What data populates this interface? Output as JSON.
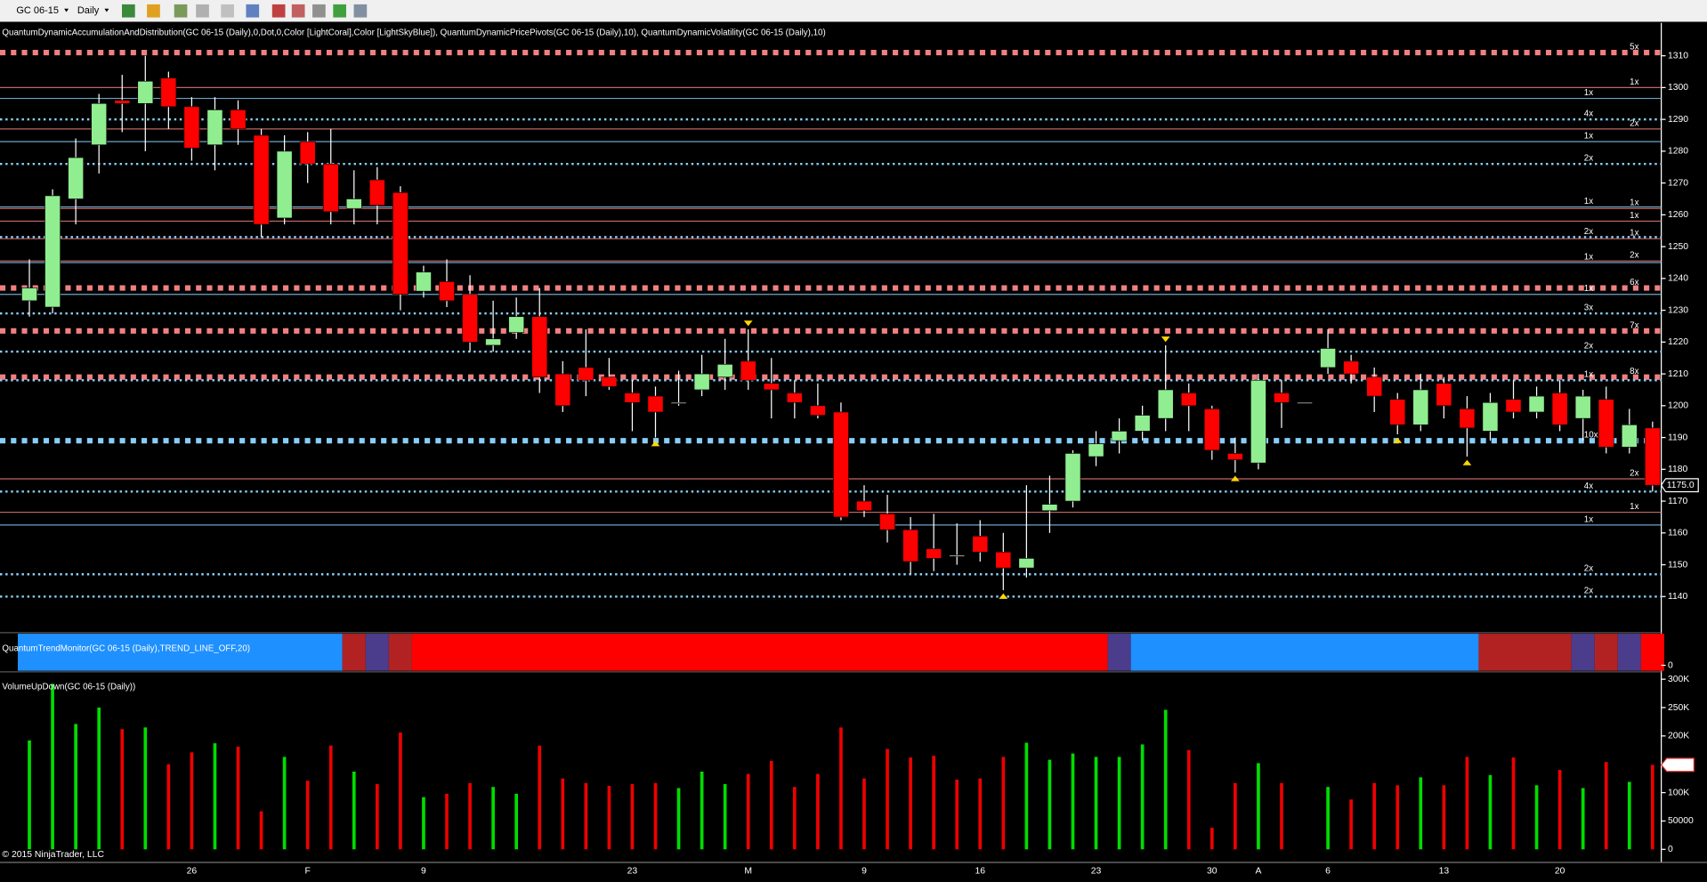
{
  "toolbar": {
    "instrument": "GC 06-15",
    "period": "Daily"
  },
  "copyright": "© 2015 NinjaTrader, LLC",
  "chart_data": [
    {
      "type": "candlestick",
      "title": "QuantumDynamicAccumulationAndDistribution(GC 06-15 (Daily),0,Dot,0,Color [LightCoral],Color [LightSkyBlue]), QuantumDynamicPricePivots(GC 06-15 (Daily),10), QuantumDynamicVolatility(GC 06-15 (Daily),10)",
      "categories": [
        null,
        null,
        null,
        null,
        null,
        null,
        null,
        "26",
        null,
        null,
        null,
        null,
        "F",
        null,
        null,
        null,
        null,
        "9",
        null,
        null,
        null,
        null,
        null,
        null,
        null,
        null,
        "23",
        null,
        null,
        null,
        null,
        "M",
        null,
        null,
        null,
        null,
        "9",
        null,
        null,
        null,
        null,
        "16",
        null,
        null,
        null,
        null,
        "23",
        null,
        null,
        null,
        null,
        "30",
        null,
        "A",
        null,
        null,
        "6",
        null,
        null,
        null,
        null,
        "13",
        null,
        null,
        null,
        null,
        "20",
        null,
        null,
        null,
        null
      ],
      "open": [
        1233,
        1231,
        1265,
        1282,
        1296,
        1295,
        1303,
        1294,
        1282,
        1293,
        1285,
        1259,
        1283,
        1276,
        1262,
        1271,
        1267,
        1236,
        1239,
        1235,
        1219,
        1223,
        1228,
        1210,
        1212,
        1209,
        1204,
        1203,
        1201,
        1205,
        1209,
        1214,
        1207,
        1204,
        1200,
        1198,
        1170,
        1166,
        1161,
        1155,
        1153,
        1159,
        1154,
        1149,
        1167,
        1170,
        1184,
        1189,
        1192,
        1196,
        1204,
        1199,
        1185,
        1182,
        1204,
        1201,
        1212,
        1214,
        1209,
        1202,
        1194,
        1207,
        1199,
        1192,
        1202,
        1198,
        1204,
        1196,
        1202,
        1187,
        1193
      ],
      "high": [
        1246,
        1268,
        1284,
        1298,
        1304,
        1310,
        1305,
        1297,
        1297,
        1296,
        1287,
        1285,
        1286,
        1287,
        1274,
        1275,
        1269,
        1244,
        1246,
        1241,
        1233,
        1234,
        1237,
        1214,
        1224,
        1215,
        1208,
        1206,
        1211,
        1216,
        1221,
        1224,
        1215,
        1208,
        1207,
        1201,
        1175,
        1172,
        1165,
        1166,
        1163,
        1164,
        1160,
        1175,
        1178,
        1186,
        1192,
        1196,
        1200,
        1219,
        1207,
        1200,
        1190,
        1210,
        1208,
        1201,
        1224,
        1216,
        1212,
        1204,
        1210,
        1209,
        1203,
        1204,
        1208,
        1206,
        1208,
        1205,
        1206,
        1199,
        1195
      ],
      "low": [
        1228,
        1229,
        1257,
        1273,
        1286,
        1280,
        1287,
        1277,
        1274,
        1282,
        1253,
        1257,
        1270,
        1257,
        1257,
        1257,
        1230,
        1234,
        1231,
        1217,
        1217,
        1221,
        1204,
        1198,
        1203,
        1205,
        1192,
        1190,
        1200,
        1203,
        1205,
        1205,
        1196,
        1196,
        1196,
        1164,
        1165,
        1157,
        1147,
        1148,
        1150,
        1151,
        1142,
        1146,
        1160,
        1168,
        1181,
        1185,
        1189,
        1192,
        1192,
        1183,
        1179,
        1180,
        1193,
        1201,
        1210,
        1207,
        1198,
        1191,
        1192,
        1196,
        1184,
        1189,
        1196,
        1196,
        1192,
        1189,
        1185,
        1185,
        1173
      ],
      "close": [
        1237,
        1266,
        1278,
        1295,
        1295,
        1302,
        1294,
        1281,
        1293,
        1287,
        1257,
        1280,
        1276,
        1261,
        1265,
        1263,
        1235,
        1242,
        1233,
        1220,
        1221,
        1228,
        1209,
        1200,
        1208,
        1206,
        1201,
        1198,
        1201,
        1210,
        1213,
        1208,
        1205,
        1201,
        1197,
        1165,
        1167,
        1161,
        1151,
        1152,
        1153,
        1154,
        1149,
        1152,
        1169,
        1185,
        1188,
        1192,
        1197,
        1205,
        1200,
        1186,
        1183,
        1208,
        1201,
        1201,
        1218,
        1210,
        1203,
        1194,
        1205,
        1200,
        1193,
        1201,
        1198,
        1203,
        1194,
        1203,
        1187,
        1194,
        1175
      ],
      "up_color": "#90ee90",
      "down_color": "#ff0000",
      "doji_color": "#ffffff",
      "ylim": [
        1129,
        1320
      ],
      "yticks": [
        1140,
        1150,
        1160,
        1170,
        1180,
        1190,
        1200,
        1210,
        1220,
        1230,
        1240,
        1250,
        1260,
        1270,
        1280,
        1290,
        1300,
        1310
      ],
      "price_marker": {
        "value": 1175,
        "label": "1175.0"
      },
      "pivot_highs": [
        31,
        49
      ],
      "pivot_lows": [
        27,
        42,
        52,
        59,
        62
      ],
      "pivot_color": "#ffd700",
      "levels": [
        {
          "value": 1311,
          "label": "5x",
          "color": "#f08080",
          "style": "heavy"
        },
        {
          "value": 1300,
          "label": "1x",
          "color": "#f08080",
          "style": "thin"
        },
        {
          "value": 1296.6,
          "label": "1x",
          "color": "#87cefa",
          "style": "thin"
        },
        {
          "value": 1290,
          "label": "4x",
          "color": "#87cefa",
          "style": "dotted"
        },
        {
          "value": 1287,
          "label": "2x",
          "color": "#f08080",
          "style": "thin"
        },
        {
          "value": 1283,
          "label": "1x",
          "color": "#87cefa",
          "style": "thin"
        },
        {
          "value": 1276,
          "label": "2x",
          "color": "#87cefa",
          "style": "dotted"
        },
        {
          "value": 1262.5,
          "label": "1x",
          "color": "#87cefa",
          "style": "thin"
        },
        {
          "value": 1262,
          "label": "1x",
          "color": "#f08080",
          "style": "thin"
        },
        {
          "value": 1258,
          "label": "1x",
          "color": "#f08080",
          "style": "thin"
        },
        {
          "value": 1253,
          "label": "2x",
          "color": "#87cefa",
          "style": "dotted"
        },
        {
          "value": 1252.5,
          "label": "1x",
          "color": "#f08080",
          "style": "thin"
        },
        {
          "value": 1245.5,
          "label": "2x",
          "color": "#f08080",
          "style": "thin"
        },
        {
          "value": 1245,
          "label": "1x",
          "color": "#87cefa",
          "style": "thin"
        },
        {
          "value": 1237,
          "label": "6x",
          "color": "#f08080",
          "style": "heavy"
        },
        {
          "value": 1235,
          "label": "1x",
          "color": "#87cefa",
          "style": "thin"
        },
        {
          "value": 1229,
          "label": "3x",
          "color": "#87cefa",
          "style": "dotted"
        },
        {
          "value": 1223.5,
          "label": "7x",
          "color": "#f08080",
          "style": "heavy"
        },
        {
          "value": 1217,
          "label": "2x",
          "color": "#87cefa",
          "style": "dotted"
        },
        {
          "value": 1209,
          "label": "8x",
          "color": "#f08080",
          "style": "heavy"
        },
        {
          "value": 1208,
          "label": "1x",
          "color": "#87cefa",
          "style": "dotted"
        },
        {
          "value": 1189,
          "label": "10x",
          "color": "#87cefa",
          "style": "heavy"
        },
        {
          "value": 1177,
          "label": "2x",
          "color": "#f08080",
          "style": "thin"
        },
        {
          "value": 1173,
          "label": "4x",
          "color": "#87cefa",
          "style": "dotted"
        },
        {
          "value": 1166.5,
          "label": "1x",
          "color": "#f08080",
          "style": "thin"
        },
        {
          "value": 1162.5,
          "label": "1x",
          "color": "#87cefa",
          "style": "thin"
        },
        {
          "value": 1147,
          "label": "2x",
          "color": "#87cefa",
          "style": "dotted"
        },
        {
          "value": 1140,
          "label": "2x",
          "color": "#87cefa",
          "style": "dotted"
        }
      ]
    },
    {
      "type": "band",
      "title": "QuantumTrendMonitor(GC 06-15 (Daily),TREND_LINE_OFF,20)",
      "yticks": [
        0
      ],
      "runs": [
        {
          "from": 0,
          "to": 13,
          "color": "#1e90ff"
        },
        {
          "from": 14,
          "to": 14,
          "color": "#b22222"
        },
        {
          "from": 15,
          "to": 15,
          "color": "#4b3c8c"
        },
        {
          "from": 16,
          "to": 16,
          "color": "#b22222"
        },
        {
          "from": 17,
          "to": 46,
          "color": "#ff0000"
        },
        {
          "from": 47,
          "to": 47,
          "color": "#4b3c8c"
        },
        {
          "from": 48,
          "to": 62,
          "color": "#1e90ff"
        },
        {
          "from": 63,
          "to": 66,
          "color": "#b22222"
        },
        {
          "from": 67,
          "to": 67,
          "color": "#4b3c8c"
        },
        {
          "from": 68,
          "to": 68,
          "color": "#b22222"
        },
        {
          "from": 69,
          "to": 69,
          "color": "#4b3c8c"
        },
        {
          "from": 70,
          "to": 70,
          "color": "#ff0000"
        }
      ]
    },
    {
      "type": "bar",
      "title": "VolumeUpDown(GC 06-15 (Daily))",
      "values": [
        192000,
        292000,
        221000,
        250000,
        212000,
        215000,
        150000,
        171000,
        187000,
        181000,
        67000,
        163000,
        121000,
        183000,
        137000,
        115000,
        206000,
        92000,
        98000,
        117000,
        110000,
        98000,
        183000,
        125000,
        117000,
        112000,
        115000,
        117000,
        108000,
        137000,
        115000,
        133000,
        156000,
        110000,
        133000,
        215000,
        125000,
        177000,
        162000,
        165000,
        123000,
        125000,
        163000,
        188000,
        158000,
        169000,
        163000,
        163000,
        185000,
        246000,
        175000,
        38000,
        117000,
        152000,
        117000,
        null,
        110000,
        88000,
        117000,
        113000,
        127000,
        113000,
        163000,
        131000,
        162000,
        113000,
        140000,
        108000,
        154000,
        119000,
        149000
      ],
      "directions": [
        "up",
        "up",
        "up",
        "up",
        "down",
        "up",
        "down",
        "down",
        "up",
        "down",
        "down",
        "up",
        "down",
        "down",
        "up",
        "down",
        "down",
        "up",
        "down",
        "down",
        "up",
        "up",
        "down",
        "down",
        "down",
        "down",
        "down",
        "down",
        "up",
        "up",
        "up",
        "down",
        "down",
        "down",
        "down",
        "down",
        "down",
        "down",
        "down",
        "down",
        "down",
        "down",
        "down",
        "up",
        "up",
        "up",
        "up",
        "up",
        "up",
        "up",
        "down",
        "down",
        "down",
        "up",
        "down",
        "up",
        "up",
        "down",
        "down",
        "down",
        "up",
        "down",
        "down",
        "up",
        "down",
        "up",
        "down",
        "up",
        "down",
        "up",
        "down"
      ],
      "up_color": "#00dd00",
      "down_color": "#ee0000",
      "ylim": [
        0,
        313000
      ],
      "yticks": [
        0,
        50000,
        {
          "value": 100000,
          "label": "100K"
        },
        {
          "value": 150000,
          "label": "150K"
        },
        {
          "value": 200000,
          "label": "200K"
        },
        {
          "value": 250000,
          "label": "250K"
        },
        {
          "value": 300000,
          "label": "300K"
        }
      ],
      "last_label": {
        "value": 149000,
        "label": "149K"
      }
    }
  ]
}
